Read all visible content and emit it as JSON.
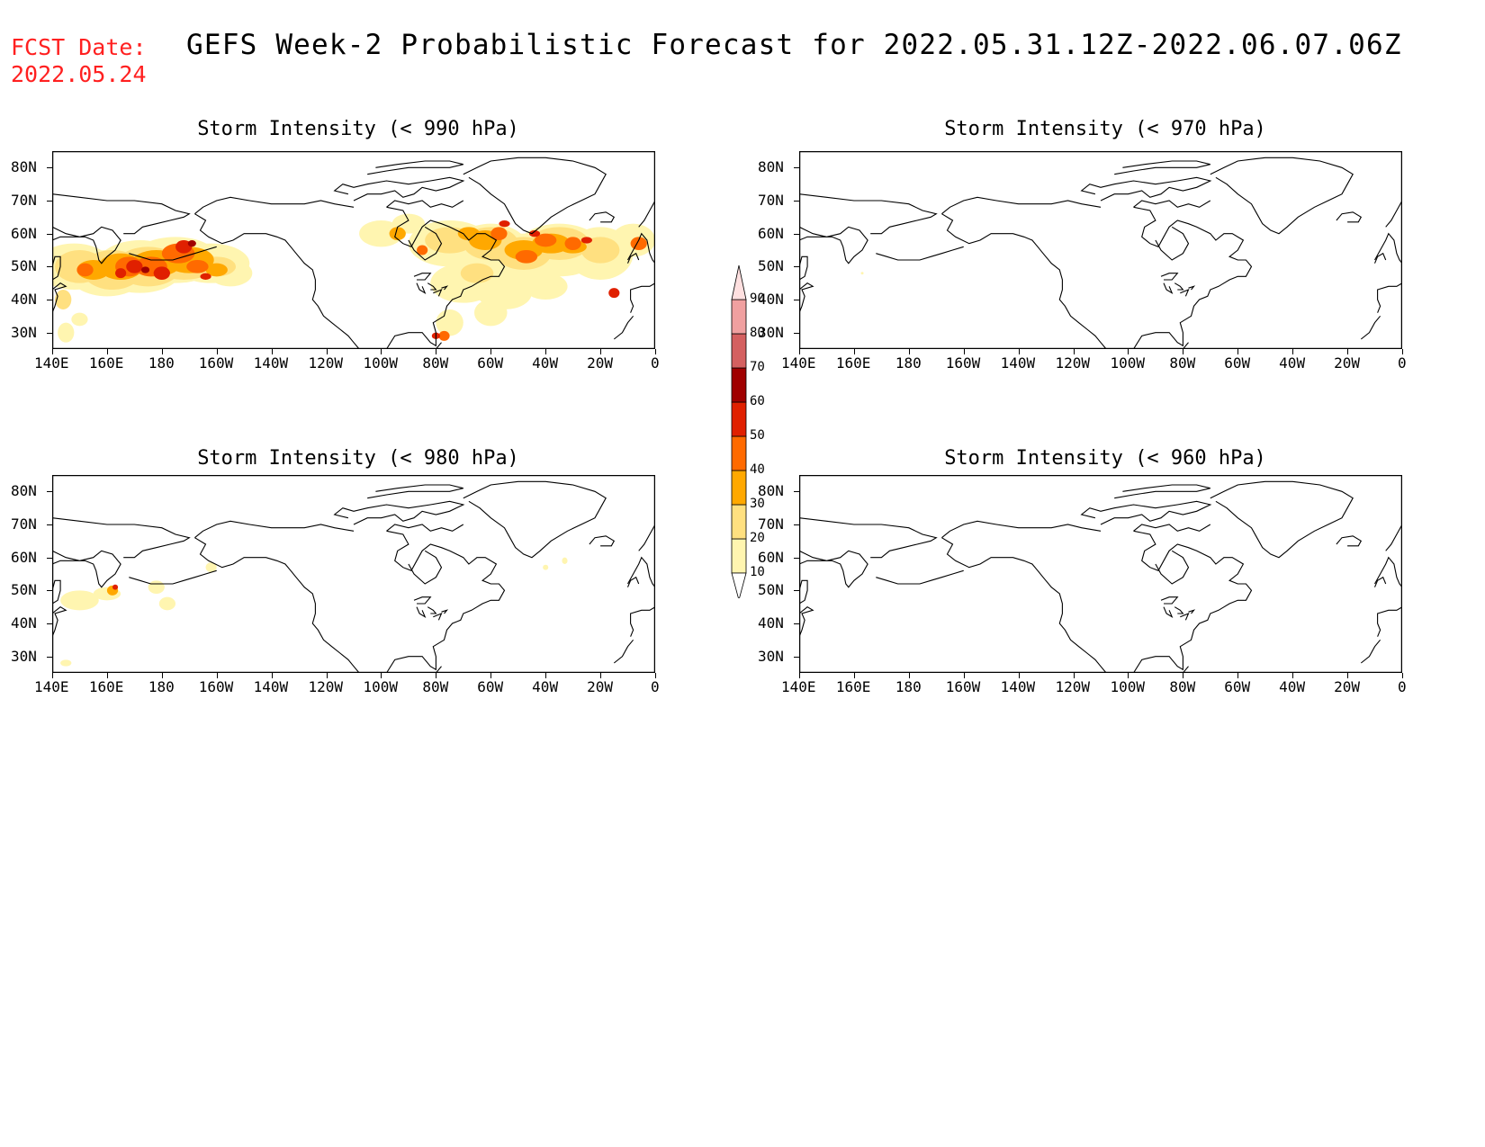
{
  "header": {
    "fcst_label": "FCST Date:",
    "fcst_date": "2022.05.24",
    "title": "GEFS Week-2 Probabilistic Forecast for 2022.05.31.12Z-2022.06.07.06Z"
  },
  "panels": [
    {
      "id": "p990",
      "title": "Storm Intensity (< 990 hPa)",
      "activity": "high"
    },
    {
      "id": "p970",
      "title": "Storm Intensity (< 970 hPa)",
      "activity": "none"
    },
    {
      "id": "p980",
      "title": "Storm Intensity (< 980 hPa)",
      "activity": "low"
    },
    {
      "id": "p960",
      "title": "Storm Intensity (< 960 hPa)",
      "activity": "none"
    }
  ],
  "axes": {
    "lat_labels": [
      "80N",
      "70N",
      "60N",
      "50N",
      "40N",
      "30N"
    ],
    "lon_labels": [
      "140E",
      "160E",
      "180",
      "160W",
      "140W",
      "120W",
      "100W",
      "80W",
      "60W",
      "40W",
      "20W",
      "0"
    ]
  },
  "colorbar": {
    "levels": [
      "10",
      "20",
      "30",
      "40",
      "50",
      "60",
      "70",
      "80",
      "90"
    ],
    "colors": [
      "#fff5b0",
      "#ffe080",
      "#ffa800",
      "#ff6a00",
      "#e02000",
      "#a00000",
      "#d46060",
      "#f0a0a0",
      "#ffe0e0"
    ]
  }
}
